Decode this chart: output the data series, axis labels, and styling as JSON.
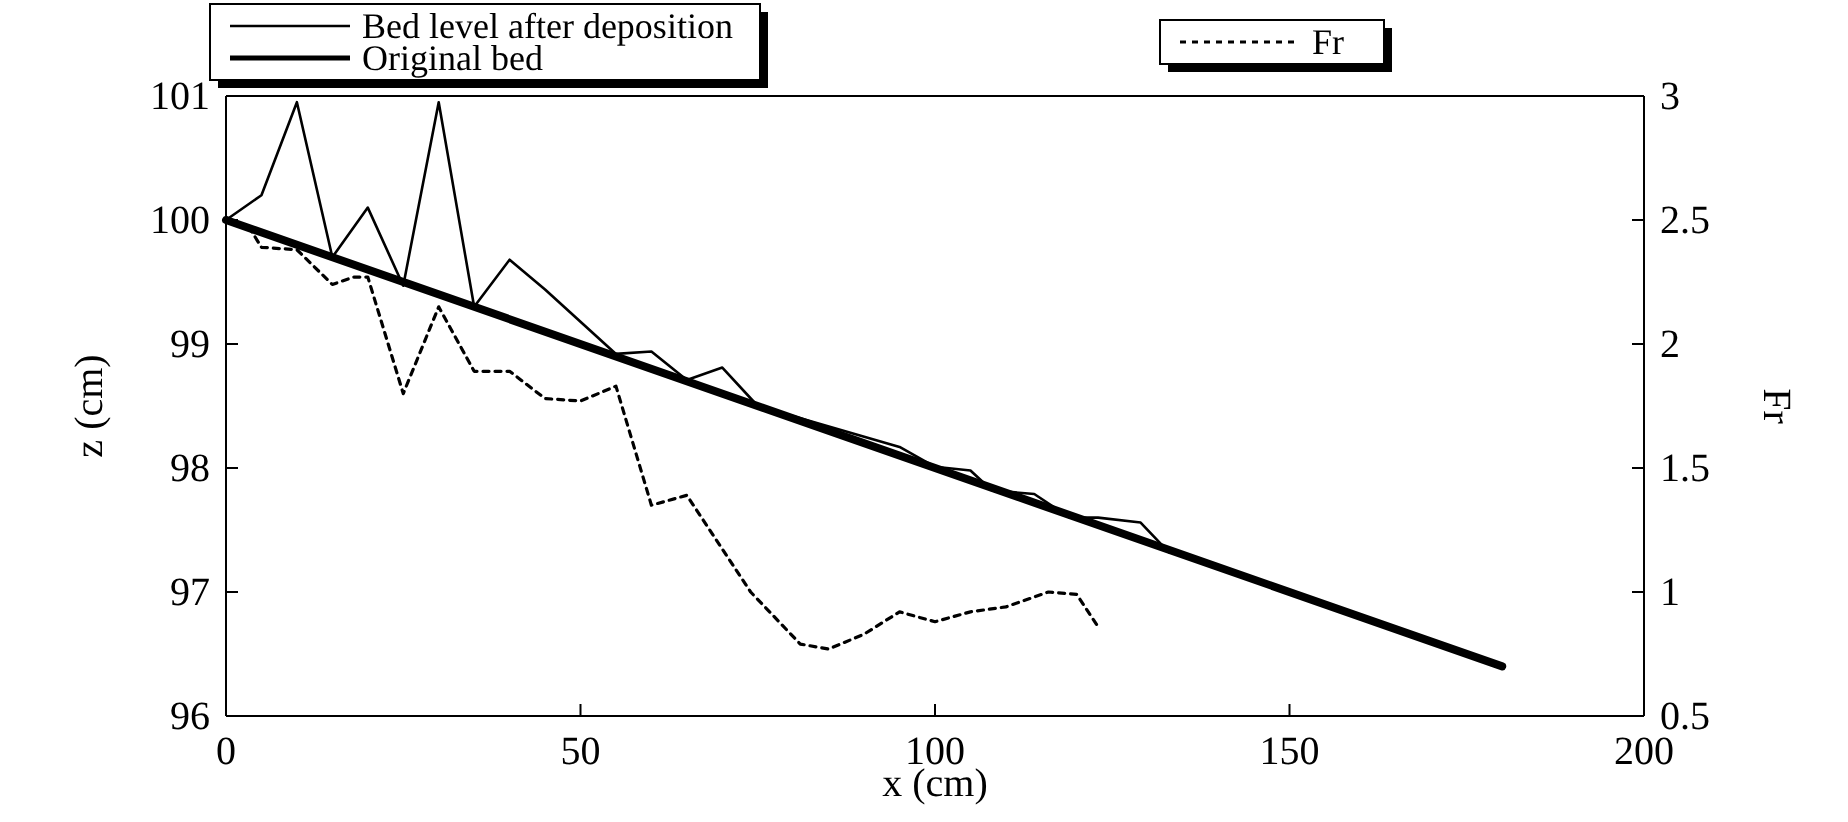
{
  "chart_data": {
    "type": "line",
    "xlabel": "x (cm)",
    "ylabel": "z (cm)",
    "y2label": "Fr",
    "xlim": [
      0,
      200
    ],
    "xticks": [
      0,
      50,
      100,
      150,
      200
    ],
    "ylim": [
      96,
      101
    ],
    "yticks": [
      96,
      97,
      98,
      99,
      100,
      101
    ],
    "y2lim": [
      0.5,
      3
    ],
    "y2ticks": [
      0.5,
      1,
      1.5,
      2,
      2.5,
      3
    ],
    "legend": "top",
    "grid": false,
    "series": [
      {
        "name": "Bed level after deposition",
        "color": "#000000",
        "line_style": "solid",
        "x": [
          0,
          5,
          10,
          15,
          20,
          25,
          30,
          35,
          40,
          45,
          55,
          60,
          65,
          70,
          75,
          95,
          100,
          105,
          108,
          114,
          119,
          123,
          129,
          133
        ],
        "values": [
          100.0,
          100.2,
          100.95,
          99.7,
          100.1,
          99.47,
          100.95,
          99.3,
          99.68,
          99.44,
          98.92,
          98.94,
          98.71,
          98.81,
          98.5,
          98.17,
          98.01,
          97.98,
          97.82,
          97.79,
          97.6,
          97.6,
          97.56,
          97.32
        ]
      },
      {
        "name": "Original bed",
        "color": "#000000",
        "line_style": "solid",
        "x": [
          0,
          180
        ],
        "values": [
          100,
          96.4
        ]
      },
      {
        "name": "Fr",
        "color": "#000000",
        "line_style": "dotted",
        "axis": "y2",
        "x": [
          0,
          3.5,
          5,
          10,
          15,
          18,
          20,
          25,
          30,
          35,
          40,
          45,
          50,
          55,
          60,
          65,
          74,
          81,
          85,
          90,
          95,
          100,
          105,
          110,
          116,
          120,
          123
        ],
        "values": [
          2.51,
          2.46,
          2.39,
          2.38,
          2.24,
          2.27,
          2.27,
          1.8,
          2.15,
          1.89,
          1.89,
          1.78,
          1.77,
          1.83,
          1.35,
          1.39,
          1.0,
          0.79,
          0.77,
          0.83,
          0.92,
          0.88,
          0.92,
          0.94,
          1.0,
          0.99,
          0.86
        ]
      }
    ]
  }
}
